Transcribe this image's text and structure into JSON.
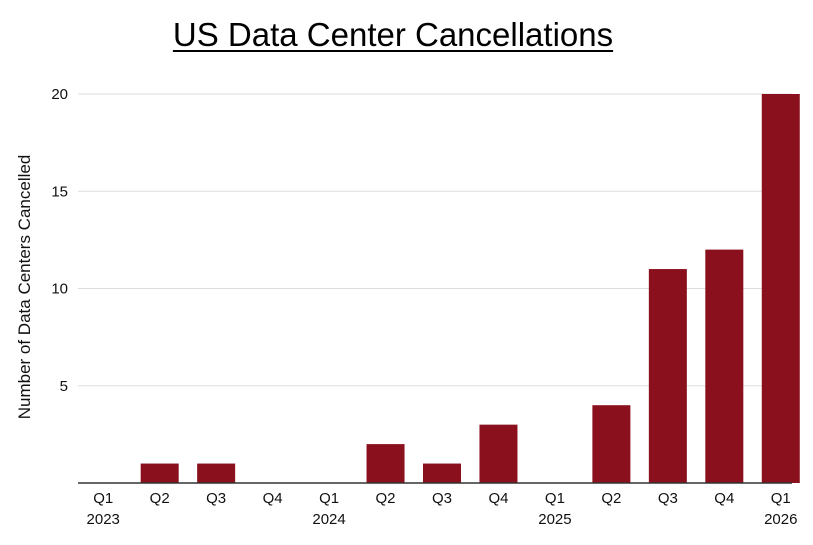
{
  "chart_data": {
    "type": "bar",
    "title": "US Data Center Cancellations",
    "ylabel": "Number of Data Centers Cancelled",
    "xlabel": "",
    "categories": [
      "Q1\n2023",
      "Q2",
      "Q3",
      "Q4",
      "Q1\n2024",
      "Q2",
      "Q3",
      "Q4",
      "Q1\n2025",
      "Q2",
      "Q3",
      "Q4",
      "Q1\n2026"
    ],
    "values": [
      0,
      1,
      1,
      0,
      0,
      2,
      1,
      3,
      0,
      4,
      11,
      12,
      20
    ],
    "ylim": [
      0,
      20
    ],
    "yticks": [
      5,
      10,
      15,
      20
    ],
    "grid": true,
    "legend": "none",
    "bar_color": "#8a101d",
    "grid_color": "#dddddd"
  }
}
